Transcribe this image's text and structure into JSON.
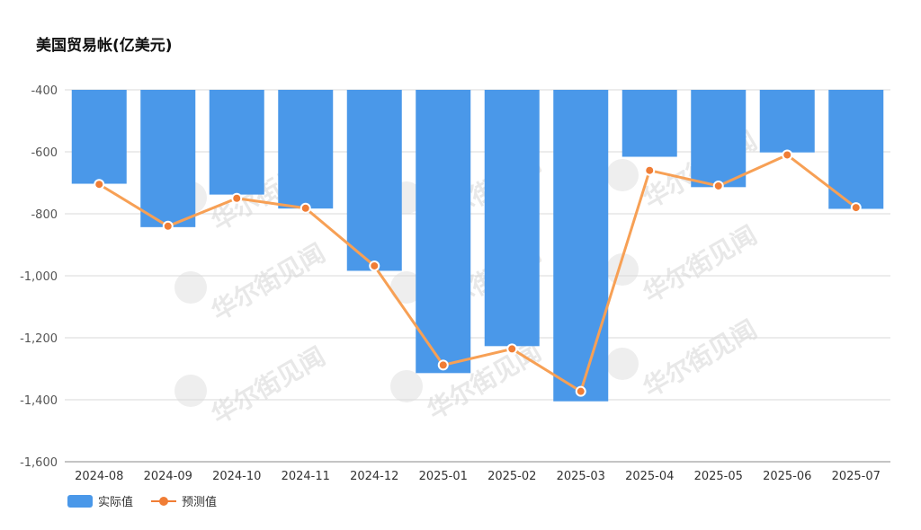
{
  "title": "美国贸易帐(亿美元)",
  "watermark": "华尔街见闻",
  "legend": {
    "actual_label": "实际值",
    "forecast_label": "预测值"
  },
  "colors": {
    "bar": "#4a98e9",
    "line": "#f7a055",
    "point": "#f07d35",
    "grid": "#d9d9d9",
    "axis": "#888888"
  },
  "chart_data": {
    "type": "bar",
    "title": "美国贸易帐(亿美元)",
    "categories": [
      "2024-08",
      "2024-09",
      "2024-10",
      "2024-11",
      "2024-12",
      "2025-01",
      "2025-02",
      "2025-03",
      "2025-04",
      "2025-05",
      "2025-06",
      "2025-07"
    ],
    "series": [
      {
        "name": "实际值",
        "type": "bar",
        "values": [
          -703,
          -843,
          -738,
          -783,
          -984,
          -1314,
          -1227,
          -1405,
          -616,
          -714,
          -602,
          -784
        ]
      },
      {
        "name": "预测值",
        "type": "line",
        "values": [
          -705,
          -840,
          -750,
          -782,
          -968,
          -1288,
          -1236,
          -1373,
          -660,
          -710,
          -610,
          -780
        ]
      }
    ],
    "ylim": [
      -1600,
      -400
    ],
    "yticks": [
      -400,
      -600,
      -800,
      -1000,
      -1200,
      -1400,
      -1600
    ],
    "ytick_labels": [
      "-400",
      "-600",
      "-800",
      "-1,000",
      "-1,200",
      "-1,400",
      "-1,600"
    ],
    "grid": true,
    "legend_position": "bottom-left"
  }
}
